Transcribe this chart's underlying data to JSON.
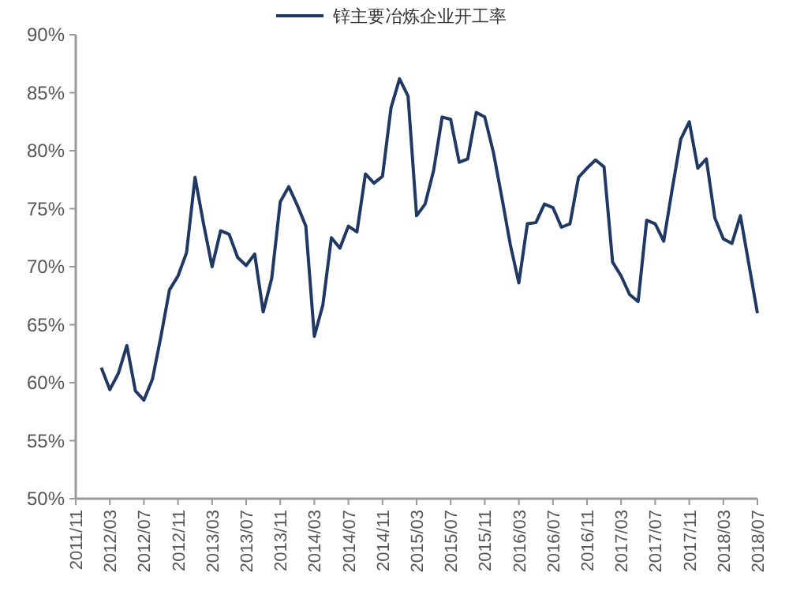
{
  "chart_data": {
    "type": "line",
    "legend": "top",
    "grid": false,
    "marker": "none",
    "line_style": "solid",
    "x": [
      "2012-02",
      "2012-03",
      "2012-04",
      "2012-05",
      "2012-06",
      "2012-07",
      "2012-08",
      "2012-09",
      "2012-10",
      "2012-11",
      "2012-12",
      "2013-01",
      "2013-02",
      "2013-03",
      "2013-04",
      "2013-05",
      "2013-06",
      "2013-07",
      "2013-08",
      "2013-09",
      "2013-10",
      "2013-11",
      "2013-12",
      "2014-01",
      "2014-02",
      "2014-03",
      "2014-04",
      "2014-05",
      "2014-06",
      "2014-07",
      "2014-08",
      "2014-09",
      "2014-10",
      "2014-11",
      "2014-12",
      "2015-01",
      "2015-02",
      "2015-03",
      "2015-04",
      "2015-05",
      "2015-06",
      "2015-07",
      "2015-08",
      "2015-09",
      "2015-10",
      "2015-11",
      "2015-12",
      "2016-01",
      "2016-02",
      "2016-03",
      "2016-04",
      "2016-05",
      "2016-06",
      "2016-07",
      "2016-08",
      "2016-09",
      "2016-10",
      "2016-11",
      "2016-12",
      "2017-01",
      "2017-02",
      "2017-03",
      "2017-04",
      "2017-05",
      "2017-06",
      "2017-07",
      "2017-08",
      "2017-09",
      "2017-10",
      "2017-11",
      "2017-12",
      "2018-01",
      "2018-02",
      "2018-03",
      "2018-04",
      "2018-05",
      "2018-07"
    ],
    "series": [
      {
        "name": "锌主要冶炼企业开工率",
        "color": "#203864",
        "values": [
          61.3,
          59.4,
          60.8,
          63.2,
          59.3,
          58.5,
          60.3,
          64.0,
          68.0,
          69.2,
          71.2,
          77.7,
          73.7,
          70.0,
          73.1,
          72.8,
          70.8,
          70.1,
          71.1,
          66.1,
          69.0,
          75.6,
          76.9,
          75.3,
          73.5,
          64.0,
          66.7,
          72.5,
          71.6,
          73.5,
          73.0,
          78.0,
          77.2,
          77.8,
          83.7,
          86.2,
          84.7,
          74.4,
          75.4,
          78.3,
          82.9,
          82.7,
          79.0,
          79.3,
          83.3,
          82.9,
          79.9,
          76.0,
          71.9,
          68.6,
          73.7,
          73.8,
          75.4,
          75.1,
          73.4,
          73.7,
          77.7,
          78.5,
          79.2,
          78.6,
          70.4,
          69.2,
          67.6,
          67.0,
          74.0,
          73.7,
          72.2,
          76.7,
          81.0,
          82.5,
          78.5,
          79.3,
          74.2,
          72.4,
          72.0,
          74.4,
          66.0
        ]
      }
    ],
    "xlim": [
      "2011-11",
      "2018-07"
    ],
    "xticks": [
      {
        "value": "2011-11",
        "label": "2011/11"
      },
      {
        "value": "2012-03",
        "label": "2012/03"
      },
      {
        "value": "2012-07",
        "label": "2012/07"
      },
      {
        "value": "2012-11",
        "label": "2012/11"
      },
      {
        "value": "2013-03",
        "label": "2013/03"
      },
      {
        "value": "2013-07",
        "label": "2013/07"
      },
      {
        "value": "2013-11",
        "label": "2013/11"
      },
      {
        "value": "2014-03",
        "label": "2014/03"
      },
      {
        "value": "2014-07",
        "label": "2014/07"
      },
      {
        "value": "2014-11",
        "label": "2014/11"
      },
      {
        "value": "2015-03",
        "label": "2015/03"
      },
      {
        "value": "2015-07",
        "label": "2015/07"
      },
      {
        "value": "2015-11",
        "label": "2015/11"
      },
      {
        "value": "2016-03",
        "label": "2016/03"
      },
      {
        "value": "2016-07",
        "label": "2016/07"
      },
      {
        "value": "2016-11",
        "label": "2016/11"
      },
      {
        "value": "2017-03",
        "label": "2017/03"
      },
      {
        "value": "2017-07",
        "label": "2017/07"
      },
      {
        "value": "2017-11",
        "label": "2017/11"
      },
      {
        "value": "2018-03",
        "label": "2018/03"
      },
      {
        "value": "2018-07",
        "label": "2018/07"
      }
    ],
    "ylim": [
      50,
      90
    ],
    "yticks": [
      {
        "value": 50,
        "label": "50%"
      },
      {
        "value": 55,
        "label": "55%"
      },
      {
        "value": 60,
        "label": "60%"
      },
      {
        "value": 65,
        "label": "65%"
      },
      {
        "value": 70,
        "label": "70%"
      },
      {
        "value": 75,
        "label": "75%"
      },
      {
        "value": 80,
        "label": "80%"
      },
      {
        "value": 85,
        "label": "85%"
      },
      {
        "value": 90,
        "label": "90%"
      }
    ]
  }
}
